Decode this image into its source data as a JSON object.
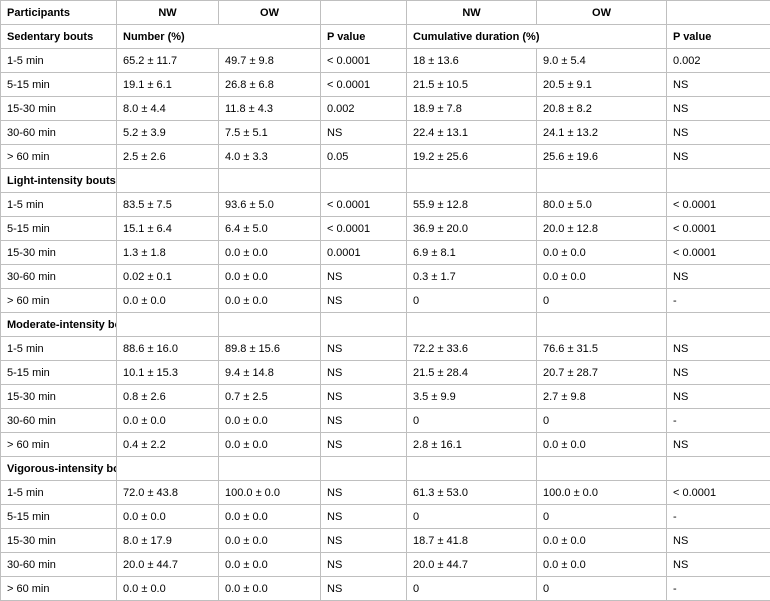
{
  "header": {
    "participants": "Participants",
    "nw": "NW",
    "ow": "OW",
    "number": "Number (%)",
    "pvalue": "P value",
    "cumdur": "Cumulative duration (%)"
  },
  "sections": {
    "sedentary": "Sedentary bouts",
    "light": "Light-intensity bouts",
    "moderate": "Moderate-intensity bouts",
    "vigorous": "Vigorous-intensity bouts"
  },
  "rowlabels": {
    "r1": "1-5 min",
    "r2": "5-15 min",
    "r3": "15-30 min",
    "r4": "30-60 min",
    "r5": "> 60 min"
  },
  "sed": {
    "r1": {
      "nw": "65.2 ± 11.7",
      "ow": "49.7 ± 9.8",
      "p1": "< 0.0001",
      "cnw": "18 ± 13.6",
      "cow": "9.0 ± 5.4",
      "p2": "0.002"
    },
    "r2": {
      "nw": "19.1 ± 6.1",
      "ow": "26.8 ± 6.8",
      "p1": "< 0.0001",
      "cnw": "21.5 ± 10.5",
      "cow": "20.5 ± 9.1",
      "p2": "NS"
    },
    "r3": {
      "nw": "8.0 ± 4.4",
      "ow": "11.8 ± 4.3",
      "p1": "0.002",
      "cnw": "18.9 ± 7.8",
      "cow": "20.8 ± 8.2",
      "p2": "NS"
    },
    "r4": {
      "nw": "5.2 ± 3.9",
      "ow": "7.5 ± 5.1",
      "p1": "NS",
      "cnw": "22.4 ± 13.1",
      "cow": "24.1 ± 13.2",
      "p2": "NS"
    },
    "r5": {
      "nw": "2.5 ± 2.6",
      "ow": "4.0 ± 3.3",
      "p1": "0.05",
      "cnw": "19.2 ± 25.6",
      "cow": "25.6 ± 19.6",
      "p2": "NS"
    }
  },
  "light": {
    "r1": {
      "nw": "83.5 ± 7.5",
      "ow": "93.6 ± 5.0",
      "p1": "< 0.0001",
      "cnw": "55.9 ± 12.8",
      "cow": "80.0 ± 5.0",
      "p2": "< 0.0001"
    },
    "r2": {
      "nw": "15.1 ± 6.4",
      "ow": "6.4 ± 5.0",
      "p1": "< 0.0001",
      "cnw": "36.9 ± 20.0",
      "cow": "20.0 ± 12.8",
      "p2": "< 0.0001"
    },
    "r3": {
      "nw": "1.3 ± 1.8",
      "ow": "0.0 ± 0.0",
      "p1": "0.0001",
      "cnw": "6.9 ± 8.1",
      "cow": "0.0 ± 0.0",
      "p2": "< 0.0001"
    },
    "r4": {
      "nw": "0.02 ± 0.1",
      "ow": "0.0 ± 0.0",
      "p1": "NS",
      "cnw": "0.3 ± 1.7",
      "cow": "0.0 ± 0.0",
      "p2": "NS"
    },
    "r5": {
      "nw": "0.0 ± 0.0",
      "ow": "0.0 ± 0.0",
      "p1": "NS",
      "cnw": "0",
      "cow": "0",
      "p2": " -"
    }
  },
  "moderate": {
    "r1": {
      "nw": "88.6 ± 16.0",
      "ow": "89.8 ± 15.6",
      "p1": "NS",
      "cnw": "72.2 ± 33.6",
      "cow": "76.6 ± 31.5",
      "p2": "NS"
    },
    "r2": {
      "nw": "10.1 ± 15.3",
      "ow": "9.4 ± 14.8",
      "p1": "NS",
      "cnw": "21.5 ± 28.4",
      "cow": "20.7 ± 28.7",
      "p2": "NS"
    },
    "r3": {
      "nw": "0.8 ± 2.6",
      "ow": "0.7 ± 2.5",
      "p1": "NS",
      "cnw": "3.5 ± 9.9",
      "cow": "2.7 ± 9.8",
      "p2": "NS"
    },
    "r4": {
      "nw": "0.0 ± 0.0",
      "ow": "0.0 ± 0.0",
      "p1": "NS",
      "cnw": "0",
      "cow": "0",
      "p2": " -"
    },
    "r5": {
      "nw": "0.4 ± 2.2",
      "ow": "0.0 ± 0.0",
      "p1": "NS",
      "cnw": "2.8 ± 16.1",
      "cow": "0.0 ± 0.0",
      "p2": "NS"
    }
  },
  "vigorous": {
    "r1": {
      "nw": "72.0 ± 43.8",
      "ow": "100.0 ± 0.0",
      "p1": "NS",
      "cnw": "61.3 ± 53.0",
      "cow": "100.0 ± 0.0",
      "p2": " < 0.0001"
    },
    "r2": {
      "nw": "0.0 ± 0.0",
      "ow": "0.0 ± 0.0",
      "p1": "NS",
      "cnw": "0",
      "cow": "0",
      "p2": " -"
    },
    "r3": {
      "nw": "8.0 ± 17.9",
      "ow": "0.0 ± 0.0",
      "p1": "NS",
      "cnw": "18.7 ± 41.8",
      "cow": "0.0 ± 0.0",
      "p2": "NS"
    },
    "r4": {
      "nw": "20.0 ± 44.7",
      "ow": "0.0 ± 0.0",
      "p1": "NS",
      "cnw": "20.0 ± 44.7",
      "cow": "0.0 ± 0.0",
      "p2": "NS"
    },
    "r5": {
      "nw": "0.0 ± 0.0",
      "ow": "0.0 ± 0.0",
      "p1": "NS",
      "cnw": "0",
      "cow": "0",
      "p2": " -"
    }
  }
}
